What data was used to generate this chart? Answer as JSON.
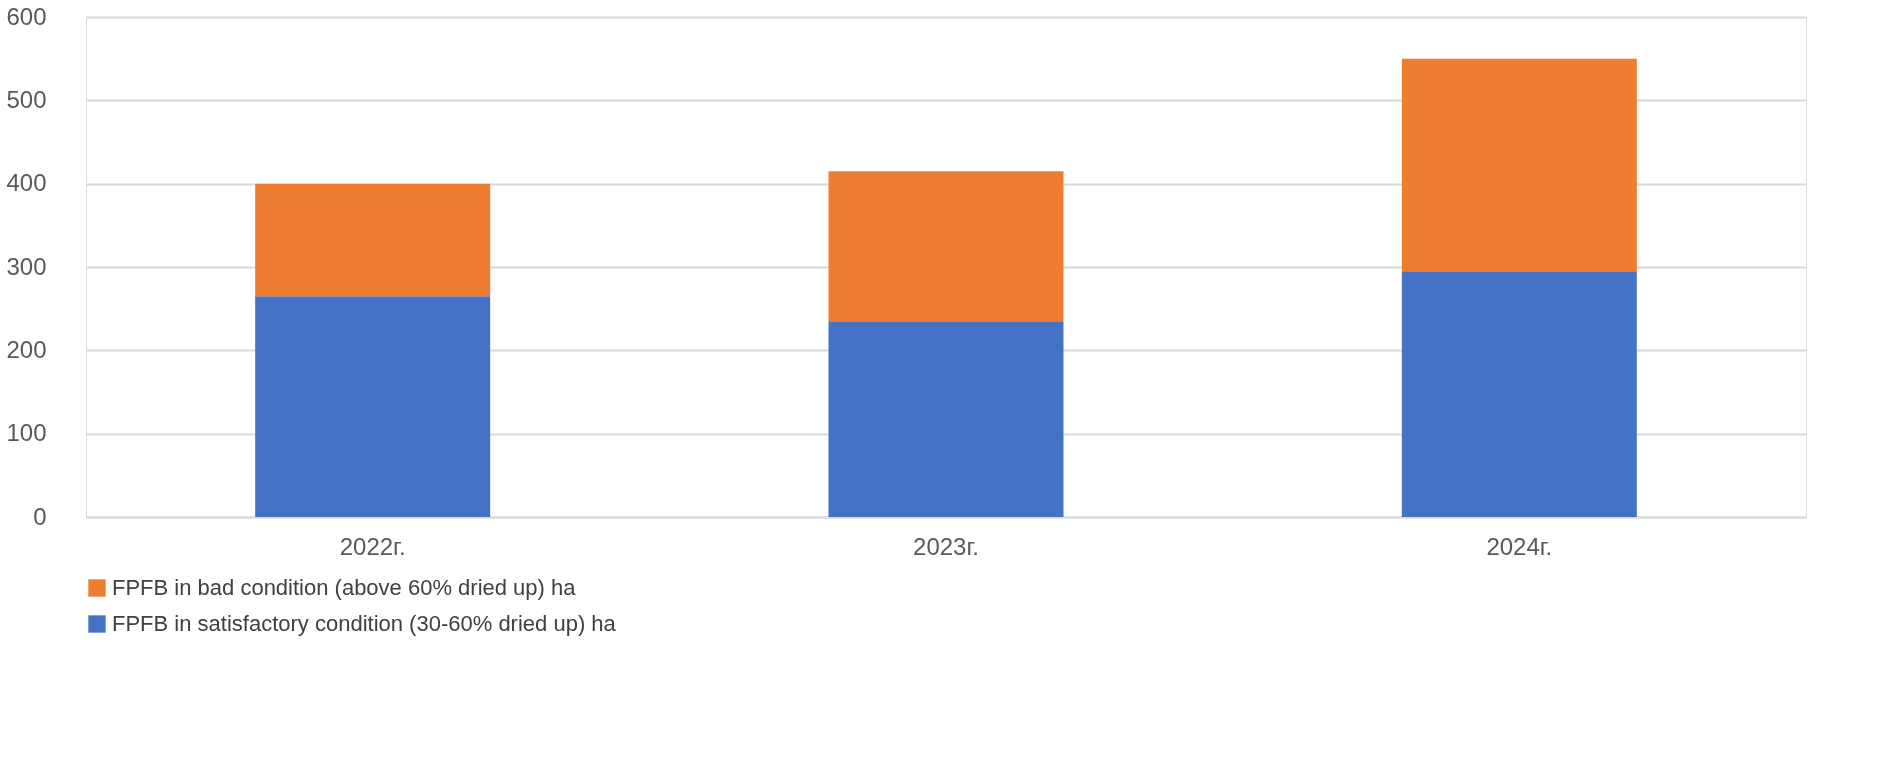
{
  "chart_data": {
    "type": "bar",
    "stacked": true,
    "categories": [
      "2022г.",
      "2023г.",
      "2024г."
    ],
    "series": [
      {
        "name": "FPFB in satisfactory condition (30-60% dried up) ha",
        "color": "#4472c4",
        "values": [
          265,
          235,
          295
        ]
      },
      {
        "name": "FPFB in bad condition (above 60% dried up) ha",
        "color": "#ed7d31",
        "values": [
          135,
          180,
          255
        ]
      }
    ],
    "ylim": [
      0,
      600
    ],
    "yticks": [
      0,
      100,
      200,
      300,
      400,
      500,
      600
    ],
    "grid": "y",
    "legend": "bottom"
  }
}
